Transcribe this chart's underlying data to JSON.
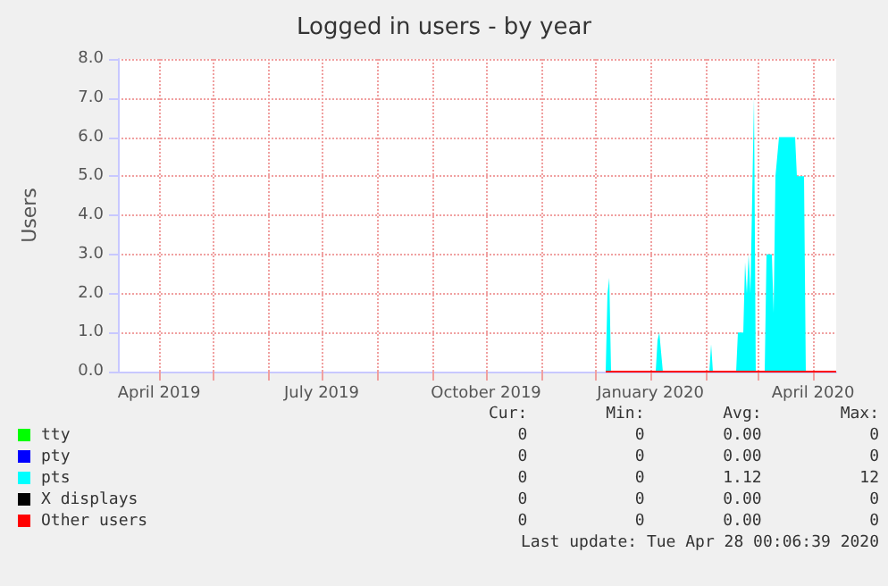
{
  "chart_data": {
    "type": "area",
    "title": "Logged in users - by year",
    "ylabel": "Users",
    "x": [
      "2019-12-07",
      "2019-12-08",
      "2019-12-09",
      "2019-12-10",
      "2020-01-04",
      "2020-01-05",
      "2020-01-06",
      "2020-01-07",
      "2020-01-08",
      "2020-02-03",
      "2020-02-04",
      "2020-02-05",
      "2020-02-18",
      "2020-02-19",
      "2020-02-22",
      "2020-02-23",
      "2020-02-24",
      "2020-02-25",
      "2020-02-26",
      "2020-02-28",
      "2020-02-29",
      "2020-03-05",
      "2020-03-06",
      "2020-03-09",
      "2020-03-10",
      "2020-03-11",
      "2020-03-13",
      "2020-03-22",
      "2020-03-23",
      "2020-03-27",
      "2020-03-28",
      "2020-04-14"
    ],
    "series": [
      {
        "name": "tty",
        "type": "line",
        "color": "#00ff00",
        "values": [
          null,
          null,
          null,
          null,
          null,
          null,
          null,
          null,
          null,
          null,
          null,
          null,
          null,
          null,
          null,
          null,
          null,
          null,
          null,
          null,
          null,
          null,
          null,
          null,
          null,
          null,
          null,
          null,
          null,
          null,
          null,
          null
        ]
      },
      {
        "name": "pty",
        "type": "line",
        "color": "#0000ff",
        "values": [
          null,
          null,
          null,
          null,
          null,
          null,
          null,
          null,
          null,
          null,
          null,
          null,
          null,
          null,
          null,
          null,
          null,
          null,
          null,
          null,
          null,
          null,
          null,
          null,
          null,
          null,
          null,
          null,
          null,
          null,
          null,
          null
        ]
      },
      {
        "name": "pts",
        "color": "#00ffff",
        "values": [
          0,
          2.0,
          2.4,
          0,
          0,
          0.8,
          1.0,
          0.5,
          0,
          0,
          0.7,
          0,
          0,
          1.0,
          1.0,
          2.8,
          2.0,
          3.0,
          2.0,
          7.0,
          0,
          0,
          3.0,
          3.0,
          1.5,
          5.0,
          6.0,
          6.0,
          5.0,
          5.0,
          0,
          0
        ]
      },
      {
        "name": "X displays",
        "type": "line",
        "color": "#000000",
        "values": [
          null,
          null,
          null,
          null,
          null,
          null,
          null,
          null,
          null,
          null,
          null,
          null,
          null,
          null,
          null,
          null,
          null,
          null,
          null,
          null,
          null,
          null,
          null,
          null,
          null,
          null,
          null,
          null,
          null,
          null,
          null,
          null
        ]
      },
      {
        "name": "Other users",
        "type": "line",
        "color": "#ff0000",
        "values": [
          0,
          0,
          0,
          0,
          0,
          0,
          0,
          0,
          0,
          0,
          0,
          0,
          0,
          0,
          0,
          0,
          0,
          0,
          0,
          0,
          0,
          0,
          0,
          0,
          0,
          0,
          0,
          0,
          0,
          0,
          0,
          0
        ]
      }
    ],
    "xlim": [
      "2019-03-09",
      "2020-04-14"
    ],
    "xticks": [
      {
        "value": "2019-04-01",
        "label": "April 2019"
      },
      {
        "value": "2019-05-01",
        "label": null
      },
      {
        "value": "2019-06-01",
        "label": null
      },
      {
        "value": "2019-07-01",
        "label": "July 2019"
      },
      {
        "value": "2019-08-01",
        "label": null
      },
      {
        "value": "2019-09-01",
        "label": null
      },
      {
        "value": "2019-10-01",
        "label": "October 2019"
      },
      {
        "value": "2019-11-01",
        "label": null
      },
      {
        "value": "2019-12-01",
        "label": null
      },
      {
        "value": "2020-01-01",
        "label": "January 2020"
      },
      {
        "value": "2020-02-01",
        "label": null
      },
      {
        "value": "2020-03-01",
        "label": null
      },
      {
        "value": "2020-04-01",
        "label": "April 2020"
      }
    ],
    "ylim": [
      0,
      8
    ],
    "yticks": [
      {
        "value": 0,
        "label": "0.0"
      },
      {
        "value": 1,
        "label": "1.0"
      },
      {
        "value": 2,
        "label": "2.0"
      },
      {
        "value": 3,
        "label": "3.0"
      },
      {
        "value": 4,
        "label": "4.0"
      },
      {
        "value": 5,
        "label": "5.0"
      },
      {
        "value": 6,
        "label": "6.0"
      },
      {
        "value": 7,
        "label": "7.0"
      },
      {
        "value": 8,
        "label": "8.0"
      }
    ],
    "grid": true,
    "legend": "bottom",
    "annotations": [
      "Cur:",
      "Min:",
      "Avg:",
      "Max:",
      "0",
      "0",
      "0.00",
      "0",
      "0",
      "0",
      "0.00",
      "0",
      "0",
      "0",
      "1.12",
      "12",
      "0",
      "0",
      "0.00",
      "0",
      "0",
      "0",
      "0.00",
      "0",
      "Last update: Tue Apr 28 00:06:39 2020"
    ]
  }
}
